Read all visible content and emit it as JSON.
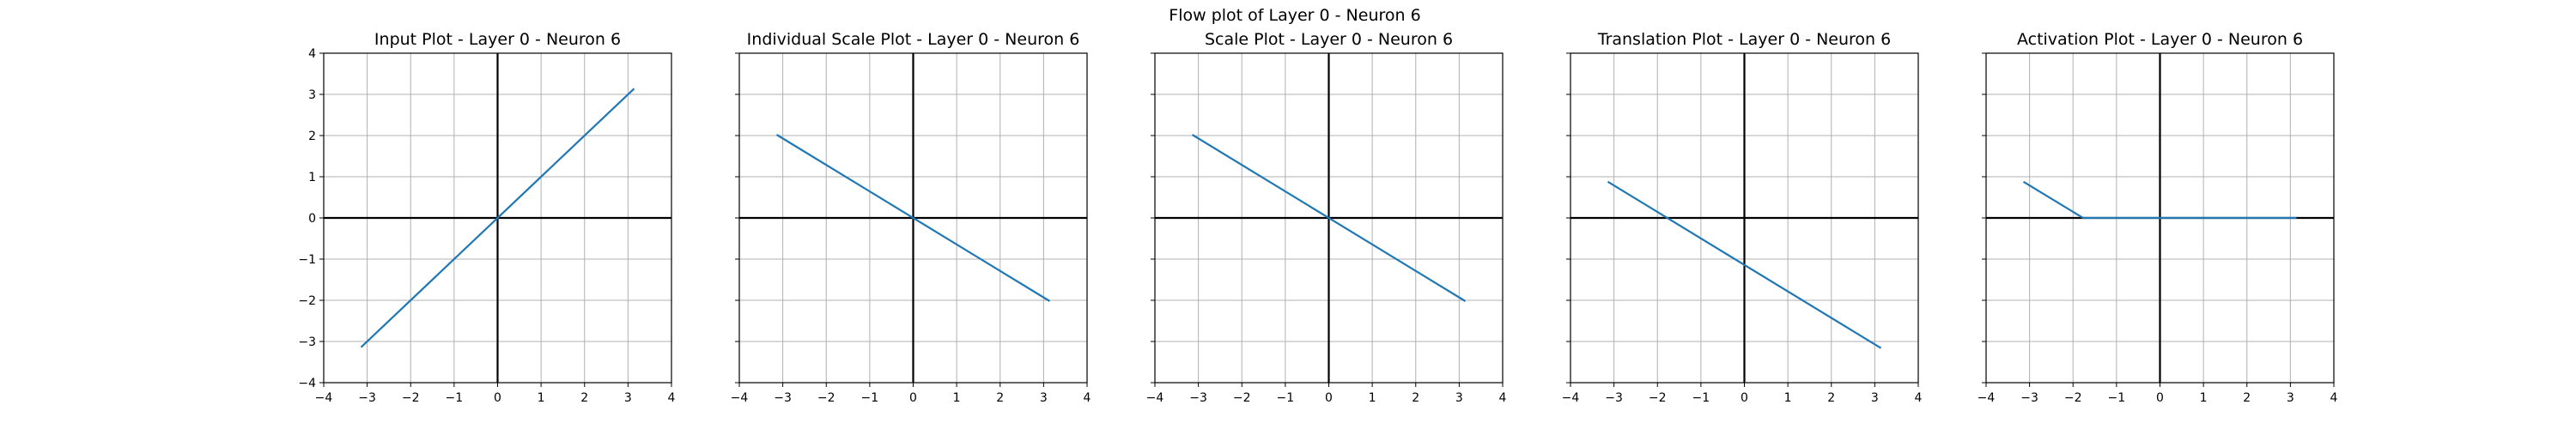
{
  "suptitle": "Flow plot of Layer 0 - Neuron 6",
  "chart_data": [
    {
      "type": "line",
      "title": "Input Plot - Layer 0 - Neuron 6",
      "xlim": [
        -4,
        4
      ],
      "ylim": [
        -4,
        4
      ],
      "xticks": [
        "−4",
        "−3",
        "−2",
        "−1",
        "0",
        "1",
        "2",
        "3",
        "4"
      ],
      "yticks": [
        "4",
        "3",
        "2",
        "1",
        "0",
        "−1",
        "−2",
        "−3",
        "−4"
      ],
      "grid": true,
      "show_ytick_labels": true,
      "series": [
        {
          "x": [
            -3.14,
            3.14
          ],
          "y": [
            -3.14,
            3.14
          ],
          "color": "#1f77b4"
        }
      ]
    },
    {
      "type": "line",
      "title": "Individual Scale Plot - Layer 0 - Neuron 6",
      "xlim": [
        -4,
        4
      ],
      "ylim": [
        -4,
        4
      ],
      "xticks": [
        "−4",
        "−3",
        "−2",
        "−1",
        "0",
        "1",
        "2",
        "3",
        "4"
      ],
      "yticks": [],
      "grid": true,
      "show_ytick_labels": false,
      "series": [
        {
          "x": [
            -3.14,
            3.14
          ],
          "y": [
            2.02,
            -2.02
          ],
          "color": "#1f77b4"
        }
      ]
    },
    {
      "type": "line",
      "title": "Scale Plot - Layer 0 - Neuron 6",
      "xlim": [
        -4,
        4
      ],
      "ylim": [
        -4,
        4
      ],
      "xticks": [
        "−4",
        "−3",
        "−2",
        "−1",
        "0",
        "1",
        "2",
        "3",
        "4"
      ],
      "yticks": [],
      "grid": true,
      "show_ytick_labels": false,
      "series": [
        {
          "x": [
            -3.14,
            3.14
          ],
          "y": [
            2.02,
            -2.02
          ],
          "color": "#1f77b4"
        }
      ]
    },
    {
      "type": "line",
      "title": "Translation Plot - Layer 0 - Neuron 6",
      "xlim": [
        -4,
        4
      ],
      "ylim": [
        -4,
        4
      ],
      "xticks": [
        "−4",
        "−3",
        "−2",
        "−1",
        "0",
        "1",
        "2",
        "3",
        "4"
      ],
      "yticks": [],
      "grid": true,
      "show_ytick_labels": false,
      "series": [
        {
          "x": [
            -3.14,
            3.14
          ],
          "y": [
            0.88,
            -3.16
          ],
          "color": "#1f77b4"
        }
      ]
    },
    {
      "type": "line",
      "title": "Activation Plot - Layer 0 - Neuron 6",
      "xlim": [
        -4,
        4
      ],
      "ylim": [
        -4,
        4
      ],
      "xticks": [
        "−4",
        "−3",
        "−2",
        "−1",
        "0",
        "1",
        "2",
        "3",
        "4"
      ],
      "yticks": [],
      "grid": true,
      "show_ytick_labels": false,
      "series": [
        {
          "x": [
            -3.14,
            -1.77,
            3.14
          ],
          "y": [
            0.88,
            0.0,
            0.0
          ],
          "color": "#1f77b4"
        }
      ]
    }
  ]
}
